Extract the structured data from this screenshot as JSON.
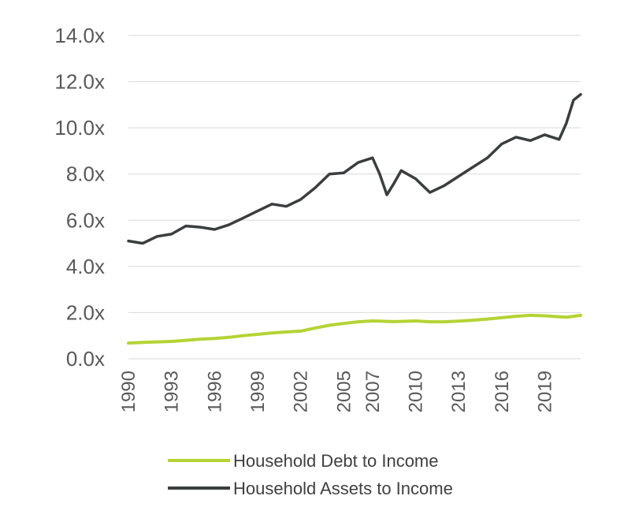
{
  "chart_data": {
    "type": "line",
    "title": "",
    "xlabel": "",
    "ylabel": "",
    "ylim": [
      0,
      14
    ],
    "y_ticks": [
      "0.0x",
      "2.0x",
      "4.0x",
      "6.0x",
      "8.0x",
      "10.0x",
      "12.0x",
      "14.0x"
    ],
    "x_ticks": [
      "1990",
      "1993",
      "1996",
      "1999",
      "2002",
      "2005",
      "2007",
      "2010",
      "2013",
      "2016",
      "2019"
    ],
    "grid": "horizontal",
    "legend_placement": "bottom",
    "x": [
      1990,
      1991,
      1992,
      1993,
      1994,
      1995,
      1996,
      1997,
      1998,
      1999,
      2000,
      2001,
      2002,
      2003,
      2004,
      2005,
      2006,
      2007,
      2007.5,
      2008,
      2008.5,
      2009,
      2010,
      2011,
      2012,
      2013,
      2014,
      2015,
      2016,
      2017,
      2018,
      2019,
      2020,
      2020.5,
      2021,
      2021.5
    ],
    "series": [
      {
        "name": "Household Debt to Income",
        "color": "#b5d334",
        "values": [
          0.68,
          0.71,
          0.73,
          0.75,
          0.8,
          0.85,
          0.88,
          0.93,
          1.0,
          1.06,
          1.12,
          1.16,
          1.2,
          1.33,
          1.45,
          1.53,
          1.6,
          1.64,
          1.63,
          1.62,
          1.61,
          1.62,
          1.64,
          1.6,
          1.6,
          1.63,
          1.67,
          1.72,
          1.78,
          1.84,
          1.88,
          1.86,
          1.82,
          1.8,
          1.84,
          1.88
        ]
      },
      {
        "name": "Household Assets to Income",
        "color": "#3a3e3f",
        "values": [
          5.1,
          5.0,
          5.3,
          5.4,
          5.75,
          5.7,
          5.6,
          5.8,
          6.1,
          6.4,
          6.7,
          6.6,
          6.9,
          7.4,
          8.0,
          8.05,
          8.5,
          8.7,
          8.0,
          7.1,
          7.6,
          8.15,
          7.8,
          7.2,
          7.5,
          7.9,
          8.3,
          8.7,
          9.3,
          9.6,
          9.45,
          9.7,
          9.5,
          10.2,
          11.2,
          11.45
        ]
      }
    ]
  }
}
